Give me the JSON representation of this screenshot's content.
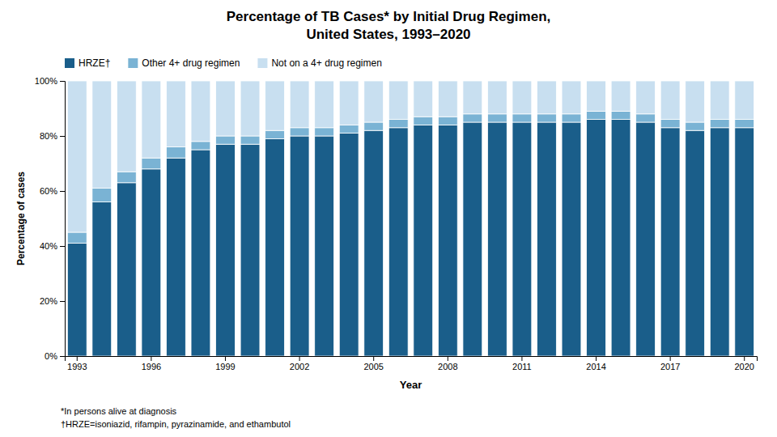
{
  "chart_data": {
    "type": "bar",
    "stacked": true,
    "title": "Percentage of TB Cases* by Initial Drug Regimen,\nUnited States, 1993–2020",
    "xlabel": "Year",
    "ylabel": "Percentage of cases",
    "categories": [
      "1993",
      null,
      null,
      "1996",
      null,
      null,
      "1999",
      null,
      null,
      "2002",
      null,
      null,
      "2005",
      null,
      null,
      "2008",
      null,
      null,
      "2011",
      null,
      null,
      "2014",
      null,
      null,
      "2017",
      null,
      null,
      "2020"
    ],
    "series": [
      {
        "name": "HRZE†",
        "color": "#1a5e8a",
        "values": [
          41,
          56,
          63,
          68,
          72,
          75,
          77,
          77,
          79,
          80,
          80,
          81,
          82,
          83,
          84,
          84,
          85,
          85,
          85,
          85,
          85,
          86,
          86,
          85,
          83,
          82,
          83,
          83
        ]
      },
      {
        "name": "Other 4+ drug regimen",
        "color": "#7ab3d4",
        "values": [
          4,
          5,
          4,
          4,
          4,
          3,
          3,
          3,
          3,
          3,
          3,
          3,
          3,
          3,
          3,
          3,
          3,
          3,
          3,
          3,
          3,
          3,
          3,
          3,
          3,
          3,
          3,
          3
        ]
      },
      {
        "name": "Not on a 4+ drug regimen",
        "color": "#c8dff0",
        "values": [
          55,
          39,
          33,
          28,
          24,
          22,
          20,
          20,
          18,
          17,
          17,
          16,
          15,
          14,
          13,
          13,
          12,
          12,
          12,
          12,
          12,
          11,
          11,
          12,
          14,
          15,
          14,
          14
        ]
      }
    ],
    "ylim": [
      0,
      100
    ],
    "yticks": [
      {
        "value": 0,
        "label": "0%"
      },
      {
        "value": 20,
        "label": "20%"
      },
      {
        "value": 40,
        "label": "40%"
      },
      {
        "value": 60,
        "label": "60%"
      },
      {
        "value": 80,
        "label": "80%"
      },
      {
        "value": 100,
        "label": "100%"
      }
    ],
    "grid": false,
    "legend": "top",
    "annotations": [
      "*In persons alive at diagnosis",
      "†HRZE=isoniazid, rifampin, pyrazinamide, and ethambutol"
    ]
  }
}
